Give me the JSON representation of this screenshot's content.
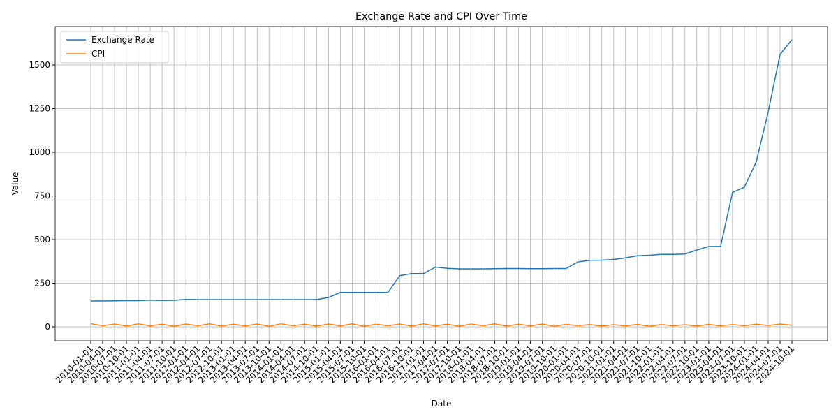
{
  "chart_data": {
    "type": "line",
    "title": "Exchange Rate and CPI Over Time",
    "x_label": "Date",
    "y_label": "Value",
    "x": [
      "2010-01-01",
      "2010-04-01",
      "2010-07-01",
      "2010-10-01",
      "2011-01-01",
      "2011-04-01",
      "2011-07-01",
      "2011-10-01",
      "2012-01-01",
      "2012-04-01",
      "2012-07-01",
      "2012-10-01",
      "2013-01-01",
      "2013-04-01",
      "2013-07-01",
      "2013-10-01",
      "2014-01-01",
      "2014-04-01",
      "2014-07-01",
      "2014-10-01",
      "2015-01-01",
      "2015-04-01",
      "2015-07-01",
      "2015-10-01",
      "2016-01-01",
      "2016-04-01",
      "2016-07-01",
      "2016-10-01",
      "2017-01-01",
      "2017-04-01",
      "2017-07-01",
      "2017-10-01",
      "2018-01-01",
      "2018-04-01",
      "2018-07-01",
      "2018-10-01",
      "2019-01-01",
      "2019-04-01",
      "2019-07-01",
      "2019-10-01",
      "2020-01-01",
      "2020-04-01",
      "2020-07-01",
      "2020-10-01",
      "2021-01-01",
      "2021-04-01",
      "2021-07-01",
      "2021-10-01",
      "2022-01-01",
      "2022-04-01",
      "2022-07-01",
      "2022-10-01",
      "2023-01-01",
      "2023-04-01",
      "2023-07-01",
      "2023-10-01",
      "2024-01-01",
      "2024-04-01",
      "2024-07-01",
      "2024-10-01"
    ],
    "series": [
      {
        "name": "Exchange Rate",
        "color": "#1f77b4",
        "values": [
          148,
          148,
          149,
          150,
          150,
          153,
          151,
          152,
          157,
          156,
          156,
          156,
          156,
          156,
          156,
          156,
          156,
          156,
          156,
          156,
          168,
          197,
          197,
          197,
          197,
          197,
          293,
          305,
          305,
          342,
          335,
          332,
          332,
          332,
          333,
          334,
          334,
          333,
          333,
          334,
          334,
          372,
          381,
          382,
          386,
          395,
          407,
          410,
          415,
          415,
          417,
          440,
          460,
          461,
          770,
          800,
          945,
          1230,
          1560,
          1645
        ]
      },
      {
        "name": "CPI",
        "color": "#ff7f0e",
        "values": [
          18,
          6,
          16,
          4,
          17,
          5,
          15,
          3,
          16,
          6,
          17,
          4,
          15,
          5,
          16,
          3,
          17,
          6,
          15,
          4,
          16,
          5,
          17,
          3,
          15,
          6,
          16,
          4,
          17,
          5,
          15,
          3,
          16,
          6,
          17,
          4,
          15,
          5,
          16,
          3,
          14,
          6,
          13,
          4,
          12,
          5,
          14,
          3,
          13,
          6,
          12,
          4,
          14,
          5,
          13,
          6,
          15,
          7,
          16,
          9
        ]
      }
    ],
    "ylim": [
      -80,
      1720
    ],
    "yticks": [
      0,
      250,
      500,
      750,
      1000,
      1250,
      1500
    ],
    "grid": true,
    "legend": "upper left"
  }
}
